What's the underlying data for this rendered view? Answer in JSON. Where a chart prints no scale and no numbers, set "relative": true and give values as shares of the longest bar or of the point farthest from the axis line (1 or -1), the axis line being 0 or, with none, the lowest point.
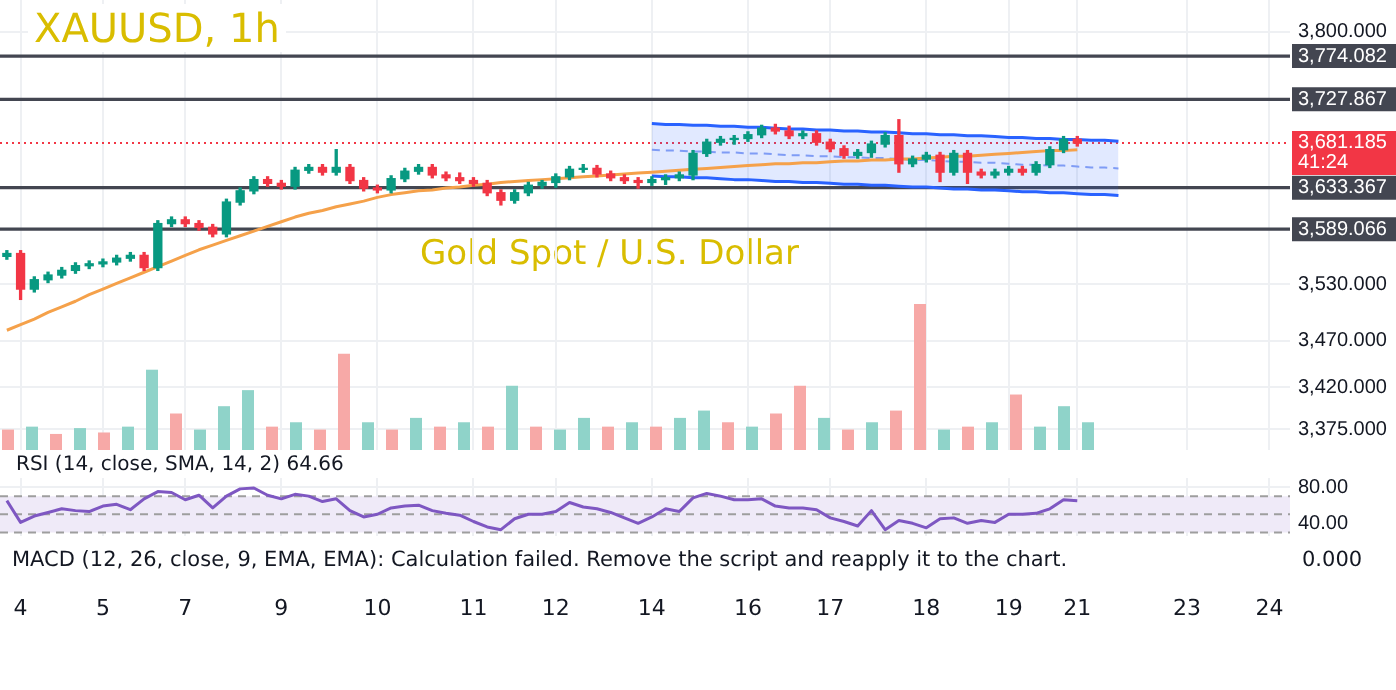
{
  "chart_data": [
    {
      "type": "candlestick",
      "title": "XAUUSD, 1h",
      "subtitle": "Gold Spot / U.S. Dollar",
      "categories": [
        null,
        "4",
        null,
        null,
        null,
        null,
        null,
        "5",
        null,
        null,
        null,
        null,
        null,
        "7",
        null,
        null,
        null,
        null,
        null,
        null,
        "9",
        null,
        null,
        null,
        null,
        null,
        null,
        "10",
        null,
        null,
        null,
        null,
        null,
        null,
        "11",
        null,
        null,
        null,
        null,
        null,
        "12",
        null,
        null,
        null,
        null,
        null,
        null,
        "14",
        null,
        null,
        null,
        null,
        null,
        null,
        "16",
        null,
        null,
        null,
        null,
        null,
        "17",
        null,
        null,
        null,
        null,
        null,
        null,
        "18",
        null,
        null,
        null,
        null,
        null,
        "19",
        null,
        null,
        null,
        null,
        "21",
        null,
        null,
        null,
        null,
        null,
        null,
        null,
        "23",
        null,
        null,
        null,
        null,
        null,
        "24",
        null
      ],
      "ohlc": [
        [
          3560,
          3566,
          3557,
          3563
        ],
        [
          3563,
          3566,
          3514,
          3525
        ],
        [
          3525,
          3538,
          3522,
          3535
        ],
        [
          3535,
          3543,
          3532,
          3540
        ],
        [
          3540,
          3548,
          3537,
          3545
        ],
        [
          3545,
          3553,
          3542,
          3550
        ],
        [
          3550,
          3555,
          3547,
          3552
        ],
        [
          3552,
          3557,
          3549,
          3554
        ],
        [
          3554,
          3561,
          3551,
          3558
        ],
        [
          3558,
          3564,
          3555,
          3561
        ],
        [
          3561,
          3564,
          3545,
          3548
        ],
        [
          3548,
          3598,
          3545,
          3595
        ],
        [
          3595,
          3602,
          3592,
          3599
        ],
        [
          3599,
          3602,
          3592,
          3595
        ],
        [
          3595,
          3598,
          3588,
          3591
        ],
        [
          3591,
          3594,
          3581,
          3584
        ],
        [
          3584,
          3621,
          3581,
          3618
        ],
        [
          3618,
          3633,
          3615,
          3630
        ],
        [
          3630,
          3645,
          3627,
          3642
        ],
        [
          3642,
          3645,
          3635,
          3638
        ],
        [
          3638,
          3641,
          3632,
          3635
        ],
        [
          3635,
          3655,
          3632,
          3652
        ],
        [
          3652,
          3658,
          3649,
          3655
        ],
        [
          3655,
          3658,
          3647,
          3650
        ],
        [
          3650,
          3674,
          3647,
          3655
        ],
        [
          3655,
          3658,
          3638,
          3641
        ],
        [
          3641,
          3644,
          3630,
          3633
        ],
        [
          3633,
          3636,
          3628,
          3631
        ],
        [
          3631,
          3646,
          3628,
          3643
        ],
        [
          3643,
          3654,
          3640,
          3651
        ],
        [
          3651,
          3658,
          3648,
          3655
        ],
        [
          3655,
          3658,
          3644,
          3647
        ],
        [
          3647,
          3650,
          3641,
          3644
        ],
        [
          3644,
          3649,
          3638,
          3641
        ],
        [
          3641,
          3644,
          3635,
          3638
        ],
        [
          3638,
          3641,
          3625,
          3628
        ],
        [
          3628,
          3631,
          3615,
          3620
        ],
        [
          3620,
          3631,
          3617,
          3628
        ],
        [
          3628,
          3639,
          3625,
          3636
        ],
        [
          3636,
          3641,
          3633,
          3639
        ],
        [
          3639,
          3648,
          3634,
          3645
        ],
        [
          3645,
          3656,
          3642,
          3653
        ],
        [
          3653,
          3658,
          3650,
          3654
        ],
        [
          3654,
          3657,
          3645,
          3648
        ],
        [
          3648,
          3651,
          3641,
          3644
        ],
        [
          3644,
          3647,
          3638,
          3641
        ],
        [
          3641,
          3644,
          3633,
          3639
        ],
        [
          3639,
          3645,
          3636,
          3642
        ],
        [
          3642,
          3647,
          3637,
          3644
        ],
        [
          3644,
          3650,
          3641,
          3647
        ],
        [
          3647,
          3673,
          3642,
          3670
        ],
        [
          3670,
          3685,
          3667,
          3682
        ],
        [
          3682,
          3688,
          3679,
          3685
        ],
        [
          3685,
          3689,
          3680,
          3686
        ],
        [
          3686,
          3693,
          3683,
          3690
        ],
        [
          3690,
          3700,
          3687,
          3697
        ],
        [
          3697,
          3701,
          3691,
          3694
        ],
        [
          3694,
          3699,
          3686,
          3689
        ],
        [
          3689,
          3694,
          3686,
          3691
        ],
        [
          3691,
          3694,
          3679,
          3682
        ],
        [
          3682,
          3685,
          3672,
          3675
        ],
        [
          3675,
          3678,
          3665,
          3668
        ],
        [
          3668,
          3674,
          3665,
          3671
        ],
        [
          3671,
          3683,
          3666,
          3680
        ],
        [
          3680,
          3692,
          3677,
          3689
        ],
        [
          3689,
          3706,
          3650,
          3659
        ],
        [
          3659,
          3667,
          3656,
          3664
        ],
        [
          3664,
          3671,
          3661,
          3668
        ],
        [
          3668,
          3671,
          3640,
          3650
        ],
        [
          3650,
          3673,
          3647,
          3670
        ],
        [
          3670,
          3673,
          3638,
          3650
        ],
        [
          3650,
          3653,
          3644,
          3647
        ],
        [
          3647,
          3653,
          3644,
          3650
        ],
        [
          3650,
          3656,
          3647,
          3653
        ],
        [
          3653,
          3656,
          3647,
          3650
        ],
        [
          3650,
          3661,
          3647,
          3658
        ],
        [
          3658,
          3677,
          3655,
          3674
        ],
        [
          3674,
          3688,
          3671,
          3685
        ],
        [
          3685,
          3688,
          3678,
          3681
        ],
        null,
        null,
        null,
        null,
        null,
        null,
        null,
        null,
        null,
        null,
        null,
        null,
        null,
        null,
        null
      ],
      "series": [
        {
          "type": "line",
          "color": "#f5a14a",
          "values": [
            3481,
            3487,
            3493,
            3500,
            3506,
            3512,
            3519,
            3525,
            3531,
            3537,
            3543,
            3549,
            3555,
            3561,
            3567,
            3572,
            3577,
            3582,
            3587,
            3592,
            3597,
            3602,
            3606,
            3609,
            3613,
            3616,
            3619,
            3623,
            3626,
            3628,
            3630,
            3631,
            3633,
            3634,
            3636,
            3637,
            3639,
            3640,
            3641,
            3642,
            3643,
            3644,
            3645,
            3646,
            3647,
            3648,
            3649,
            3650,
            3651,
            3652,
            3653,
            3654,
            3655,
            3656,
            3657,
            3658,
            3659,
            3659,
            3660,
            3660,
            3661,
            3662,
            3662,
            3663,
            3663,
            3664,
            3664,
            3665,
            3666,
            3667,
            3667,
            3668,
            3669,
            3670,
            3671,
            3672,
            3673,
            3673,
            3674,
            null,
            null,
            null,
            null,
            null,
            null,
            null,
            null,
            null,
            null,
            null,
            null,
            null,
            null,
            null
          ]
        },
        {
          "type": "line",
          "color": "#2962ff",
          "values": [
            null,
            null,
            null,
            null,
            null,
            null,
            null,
            null,
            null,
            null,
            null,
            null,
            null,
            null,
            null,
            null,
            null,
            null,
            null,
            null,
            null,
            null,
            null,
            null,
            null,
            null,
            null,
            null,
            null,
            null,
            null,
            null,
            null,
            null,
            null,
            null,
            null,
            null,
            null,
            null,
            null,
            null,
            null,
            null,
            null,
            null,
            null,
            3702,
            3701,
            3701,
            3700,
            3700,
            3699,
            3699,
            3698,
            3698,
            3697,
            3696,
            3696,
            3695,
            3695,
            3694,
            3694,
            3693,
            3693,
            3692,
            3691,
            3691,
            3690,
            3690,
            3689,
            3689,
            3688,
            3687,
            3687,
            3686,
            3686,
            3685,
            3685,
            3684,
            3684,
            3683,
            null,
            null,
            null,
            null,
            null,
            null,
            null,
            null,
            null,
            null,
            null,
            null
          ]
        },
        {
          "type": "line",
          "color": "#2962ff",
          "values": [
            null,
            null,
            null,
            null,
            null,
            null,
            null,
            null,
            null,
            null,
            null,
            null,
            null,
            null,
            null,
            null,
            null,
            null,
            null,
            null,
            null,
            null,
            null,
            null,
            null,
            null,
            null,
            null,
            null,
            null,
            null,
            null,
            null,
            null,
            null,
            null,
            null,
            null,
            null,
            null,
            null,
            null,
            null,
            null,
            null,
            null,
            null,
            3646,
            3645,
            3645,
            3644,
            3644,
            3643,
            3642,
            3642,
            3641,
            3640,
            3640,
            3639,
            3639,
            3638,
            3637,
            3637,
            3636,
            3636,
            3635,
            3634,
            3634,
            3633,
            3632,
            3632,
            3631,
            3631,
            3630,
            3629,
            3629,
            3628,
            3628,
            3627,
            3626,
            3626,
            3625,
            null,
            null,
            null,
            null,
            null,
            null,
            null,
            null,
            null,
            null,
            null,
            null
          ]
        },
        {
          "type": "line",
          "color": "#7f9cf5",
          "line_style": "dashed",
          "values": [
            null,
            null,
            null,
            null,
            null,
            null,
            null,
            null,
            null,
            null,
            null,
            null,
            null,
            null,
            null,
            null,
            null,
            null,
            null,
            null,
            null,
            null,
            null,
            null,
            null,
            null,
            null,
            null,
            null,
            null,
            null,
            null,
            null,
            null,
            null,
            null,
            null,
            null,
            null,
            null,
            null,
            null,
            null,
            null,
            null,
            null,
            null,
            3674,
            3673,
            3673,
            3672,
            3672,
            3671,
            3671,
            3670,
            3670,
            3669,
            3668,
            3668,
            3667,
            3667,
            3666,
            3666,
            3665,
            3665,
            3664,
            3663,
            3663,
            3662,
            3661,
            3661,
            3660,
            3660,
            3659,
            3658,
            3658,
            3657,
            3657,
            3656,
            3655,
            3655,
            3654,
            null,
            null,
            null,
            null,
            null,
            null,
            null,
            null,
            null,
            null,
            null,
            null
          ],
          "upper": [
            null,
            null,
            null,
            null,
            null,
            null,
            null,
            null,
            null,
            null,
            null,
            null,
            null,
            null,
            null,
            null,
            null,
            null,
            null,
            null,
            null,
            null,
            null,
            null,
            null,
            null,
            null,
            null,
            null,
            null,
            null,
            null,
            null,
            null,
            null,
            null,
            null,
            null,
            null,
            null,
            null,
            null,
            null,
            null,
            null,
            null,
            null,
            3702,
            3701,
            3701,
            3700,
            3700,
            3699,
            3699,
            3698,
            3698,
            3697,
            3696,
            3696,
            3695,
            3695,
            3694,
            3694,
            3693,
            3693,
            3692,
            3691,
            3691,
            3690,
            3690,
            3689,
            3689,
            3688,
            3687,
            3687,
            3686,
            3686,
            3685,
            3685,
            3684,
            3684,
            3683,
            null,
            null,
            null,
            null,
            null,
            null,
            null,
            null,
            null,
            null,
            null,
            null
          ],
          "lower": [
            null,
            null,
            null,
            null,
            null,
            null,
            null,
            null,
            null,
            null,
            null,
            null,
            null,
            null,
            null,
            null,
            null,
            null,
            null,
            null,
            null,
            null,
            null,
            null,
            null,
            null,
            null,
            null,
            null,
            null,
            null,
            null,
            null,
            null,
            null,
            null,
            null,
            null,
            null,
            null,
            null,
            null,
            null,
            null,
            null,
            null,
            null,
            3646,
            3645,
            3645,
            3644,
            3644,
            3643,
            3642,
            3642,
            3641,
            3640,
            3640,
            3639,
            3639,
            3638,
            3637,
            3637,
            3636,
            3636,
            3635,
            3634,
            3634,
            3633,
            3632,
            3632,
            3631,
            3631,
            3630,
            3629,
            3629,
            3628,
            3628,
            3627,
            3626,
            3626,
            3625,
            null,
            null,
            null,
            null,
            null,
            null,
            null,
            null,
            null,
            null,
            null,
            null
          ]
        }
      ],
      "ylim": [
        3353,
        3834
      ],
      "yticks": [
        {
          "value": 3800,
          "label": "3,800.000"
        },
        {
          "value": 3530,
          "label": "3,530.000"
        },
        {
          "value": 3470,
          "label": "3,470.000"
        },
        {
          "value": 3420,
          "label": "3,420.000"
        },
        {
          "value": 3375,
          "label": "3,375.000"
        }
      ],
      "ref_lines": [
        {
          "axis": "y",
          "value": 3774.082,
          "label": "3,774.082",
          "color": "#434651"
        },
        {
          "axis": "y",
          "value": 3727.867,
          "label": "3,727.867",
          "color": "#434651"
        },
        {
          "axis": "y",
          "value": 3681.185,
          "label": "3,681.185",
          "color": "#f23645",
          "line_style": "dotted"
        },
        {
          "axis": "y",
          "value": 3633.367,
          "label": "3,633.367",
          "color": "#434651"
        },
        {
          "axis": "y",
          "value": 3589.066,
          "label": "3,589.066",
          "color": "#434651"
        }
      ],
      "annotations": [
        "41:24"
      ],
      "grid": true,
      "tick_labels": "y"
    },
    {
      "type": "bar",
      "relative": true,
      "tick_labels": false,
      "categories": [
        null,
        null,
        null,
        null,
        null,
        null,
        null,
        null,
        null,
        null,
        null,
        null,
        null,
        null,
        null,
        null,
        null,
        null,
        null,
        null,
        null,
        null,
        null,
        null,
        null,
        null,
        null,
        null,
        null,
        null,
        null,
        null,
        null,
        null,
        null,
        null,
        null,
        null,
        null,
        null,
        null,
        null,
        null,
        null,
        null,
        null
      ],
      "values": [
        0.14,
        0.16,
        0.11,
        0.15,
        0.12,
        0.16,
        0.55,
        0.25,
        0.14,
        0.3,
        0.41,
        0.16,
        0.19,
        0.14,
        0.66,
        0.19,
        0.14,
        0.22,
        0.16,
        0.19,
        0.16,
        0.44,
        0.16,
        0.14,
        0.22,
        0.16,
        0.19,
        0.16,
        0.22,
        0.27,
        0.19,
        0.16,
        0.25,
        0.44,
        0.22,
        0.14,
        0.19,
        0.27,
        1,
        0.14,
        0.16,
        0.19,
        0.38,
        0.16,
        0.3,
        0.19
      ],
      "colors": [
        "#f7a9a7",
        "#8fd3c9",
        "#f7a9a7",
        "#8fd3c9",
        "#f7a9a7",
        "#8fd3c9",
        "#8fd3c9",
        "#f7a9a7",
        "#8fd3c9",
        "#8fd3c9",
        "#8fd3c9",
        "#f7a9a7",
        "#8fd3c9",
        "#f7a9a7",
        "#f7a9a7",
        "#8fd3c9",
        "#f7a9a7",
        "#8fd3c9",
        "#f7a9a7",
        "#8fd3c9",
        "#f7a9a7",
        "#8fd3c9",
        "#f7a9a7",
        "#8fd3c9",
        "#8fd3c9",
        "#f7a9a7",
        "#8fd3c9",
        "#f7a9a7",
        "#8fd3c9",
        "#8fd3c9",
        "#f7a9a7",
        "#8fd3c9",
        "#f7a9a7",
        "#f7a9a7",
        "#8fd3c9",
        "#f7a9a7",
        "#8fd3c9",
        "#f7a9a7",
        "#f7a9a7",
        "#8fd3c9",
        "#f7a9a7",
        "#8fd3c9",
        "#f7a9a7",
        "#8fd3c9",
        "#8fd3c9",
        "#8fd3c9"
      ]
    },
    {
      "type": "line",
      "title": "RSI (14, close, SMA, 14, 2) 64.66",
      "color": "#7e57c2",
      "marker": "none",
      "categories": [
        null,
        "4",
        null,
        null,
        null,
        null,
        null,
        "5",
        null,
        null,
        null,
        null,
        null,
        "7",
        null,
        null,
        null,
        null,
        null,
        null,
        "9",
        null,
        null,
        null,
        null,
        null,
        null,
        "10",
        null,
        null,
        null,
        null,
        null,
        null,
        "11",
        null,
        null,
        null,
        null,
        null,
        "12",
        null,
        null,
        null,
        null,
        null,
        null,
        "14",
        null,
        null,
        null,
        null,
        null,
        null,
        "16",
        null,
        null,
        null,
        null,
        null,
        "17",
        null,
        null,
        null,
        null,
        null,
        null,
        "18",
        null,
        null,
        null,
        null,
        null,
        "19",
        null,
        null,
        null,
        null,
        "21",
        null,
        null,
        null,
        null,
        null,
        null,
        null,
        "23",
        null,
        null,
        null,
        null,
        null,
        "24",
        null
      ],
      "values": [
        65,
        41,
        48,
        52,
        56,
        54,
        53,
        59,
        61,
        55,
        67,
        75,
        74,
        66,
        71,
        57,
        70,
        78,
        79,
        71,
        67,
        72,
        70,
        64,
        67,
        54,
        47,
        50,
        57,
        59,
        60,
        54,
        51,
        49,
        42,
        36,
        33,
        45,
        50,
        50,
        53,
        63,
        58,
        56,
        52,
        46,
        40,
        47,
        56,
        53,
        68,
        73,
        70,
        66,
        66,
        67,
        59,
        57,
        57,
        55,
        46,
        42,
        37,
        54,
        33,
        43,
        40,
        35,
        45,
        46,
        40,
        43,
        41,
        50,
        50,
        51,
        56,
        66,
        65,
        null,
        null,
        null,
        null,
        null,
        null,
        null,
        null,
        null,
        null,
        null,
        null,
        null,
        null,
        null
      ],
      "ylim": [
        26,
        90
      ],
      "yticks": [
        {
          "value": 40,
          "label": "40.00"
        },
        {
          "value": 80,
          "label": "80.00"
        }
      ],
      "ref_lines": [
        {
          "axis": "y",
          "value": 70,
          "label": null,
          "color": "#9e9e9e",
          "line_style": "dashed"
        },
        {
          "axis": "y",
          "value": 50,
          "label": null,
          "color": "#9e9e9e",
          "line_style": "dashed"
        },
        {
          "axis": "y",
          "value": 30,
          "label": null,
          "color": "#9e9e9e",
          "line_style": "dashed"
        }
      ],
      "bands": [
        {
          "axis": "y",
          "from": 30,
          "to": 70,
          "label": null,
          "color": "#efeaf8"
        }
      ],
      "grid": true
    },
    {
      "type": "other",
      "annotations": [
        "MACD (12, 26, close, 9, EMA, EMA): Calculation failed. Remove the script and reapply it to the chart.",
        "0.000"
      ]
    }
  ]
}
